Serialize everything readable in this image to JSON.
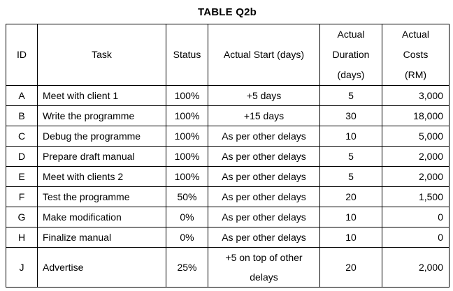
{
  "title": "TABLE Q2b",
  "colors": {
    "background": "#ffffff",
    "border": "#000000",
    "text": "#000000"
  },
  "table": {
    "columns": [
      {
        "label": "ID"
      },
      {
        "label": "Task"
      },
      {
        "label": "Status"
      },
      {
        "label": "Actual Start (days)"
      },
      {
        "label": "Actual\nDuration\n(days)"
      },
      {
        "label": "Actual\nCosts\n(RM)"
      }
    ],
    "rows": [
      {
        "id": "A",
        "task": "Meet with client 1",
        "status": "100%",
        "start": "+5 days",
        "duration": "5",
        "costs": "3,000"
      },
      {
        "id": "B",
        "task": "Write the programme",
        "status": "100%",
        "start": "+15 days",
        "duration": "30",
        "costs": "18,000"
      },
      {
        "id": "C",
        "task": "Debug the programme",
        "status": "100%",
        "start": "As per other delays",
        "duration": "10",
        "costs": "5,000"
      },
      {
        "id": "D",
        "task": "Prepare draft manual",
        "status": "100%",
        "start": "As per other delays",
        "duration": "5",
        "costs": "2,000"
      },
      {
        "id": "E",
        "task": "Meet with clients 2",
        "status": "100%",
        "start": "As per other delays",
        "duration": "5",
        "costs": "2,000"
      },
      {
        "id": "F",
        "task": "Test the programme",
        "status": "50%",
        "start": "As per other delays",
        "duration": "20",
        "costs": "1,500"
      },
      {
        "id": "G",
        "task": "Make modification",
        "status": "0%",
        "start": "As per other delays",
        "duration": "10",
        "costs": "0"
      },
      {
        "id": "H",
        "task": "Finalize manual",
        "status": "0%",
        "start": "As per other delays",
        "duration": "10",
        "costs": "0"
      },
      {
        "id": "J",
        "task": "Advertise",
        "status": "25%",
        "start": "+5 on top of other\ndelays",
        "duration": "20",
        "costs": "2,000"
      }
    ]
  }
}
